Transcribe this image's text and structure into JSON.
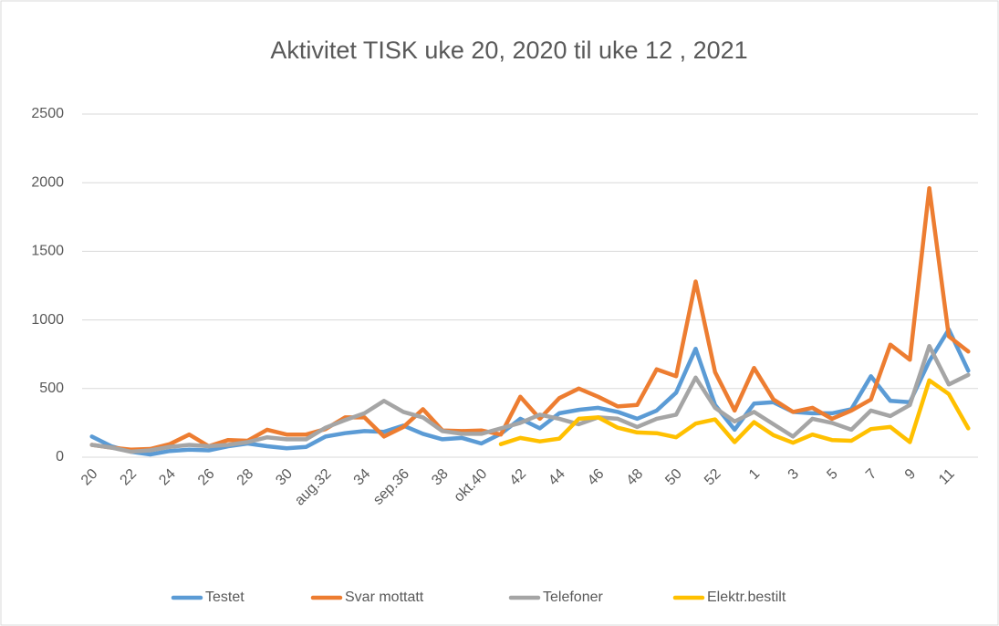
{
  "chart_data": {
    "type": "line",
    "title": "Aktivitet TISK uke 20, 2020 til uke 12  , 2021",
    "categories": [
      "20",
      null,
      "22",
      null,
      "24",
      null,
      "26",
      null,
      "28",
      null,
      "30",
      null,
      "aug.32",
      null,
      "34",
      null,
      "sep.36",
      null,
      "38",
      null,
      "okt.40",
      null,
      "42",
      null,
      "44",
      null,
      "46",
      null,
      "48",
      null,
      "50",
      null,
      "52",
      null,
      "1",
      null,
      "3",
      null,
      "5",
      null,
      "7",
      null,
      "9",
      null,
      "11",
      null
    ],
    "series": [
      {
        "name": "Testet",
        "color": "#5b9bd5",
        "values": [
          150,
          80,
          40,
          20,
          45,
          55,
          50,
          80,
          100,
          80,
          65,
          75,
          150,
          175,
          190,
          185,
          230,
          170,
          130,
          140,
          100,
          170,
          280,
          210,
          320,
          345,
          360,
          330,
          280,
          340,
          470,
          790,
          380,
          200,
          390,
          400,
          330,
          320,
          320,
          350,
          590,
          410,
          400,
          700,
          930,
          630
        ]
      },
      {
        "name": "Svar mottatt",
        "color": "#ed7d31",
        "values": [
          90,
          70,
          55,
          60,
          95,
          165,
          80,
          125,
          120,
          200,
          165,
          165,
          205,
          290,
          290,
          150,
          220,
          350,
          195,
          190,
          195,
          165,
          440,
          280,
          430,
          500,
          440,
          370,
          380,
          640,
          590,
          1280,
          620,
          340,
          650,
          420,
          330,
          360,
          280,
          340,
          420,
          820,
          710,
          1960,
          880,
          770
        ]
      },
      {
        "name": "Telefoner",
        "color": "#a5a5a5",
        "values": [
          90,
          70,
          40,
          50,
          75,
          90,
          80,
          90,
          110,
          145,
          130,
          130,
          215,
          270,
          320,
          410,
          330,
          290,
          190,
          170,
          170,
          210,
          250,
          310,
          280,
          240,
          290,
          280,
          220,
          280,
          310,
          580,
          360,
          260,
          330,
          240,
          150,
          280,
          250,
          200,
          340,
          300,
          380,
          810,
          530,
          600
        ]
      },
      {
        "name": "Elektr.bestilt",
        "color": "#ffc000",
        "values": [
          null,
          null,
          null,
          null,
          null,
          null,
          null,
          null,
          null,
          null,
          null,
          null,
          null,
          null,
          null,
          null,
          null,
          null,
          null,
          null,
          null,
          95,
          140,
          115,
          135,
          280,
          290,
          215,
          180,
          175,
          145,
          245,
          275,
          110,
          255,
          160,
          105,
          165,
          125,
          120,
          205,
          220,
          110,
          560,
          460,
          210
        ]
      }
    ],
    "ylim": [
      0,
      2500
    ],
    "yticks": [
      0,
      500,
      1000,
      1500,
      2000,
      2500
    ],
    "grid": true,
    "legend": "bottom"
  }
}
